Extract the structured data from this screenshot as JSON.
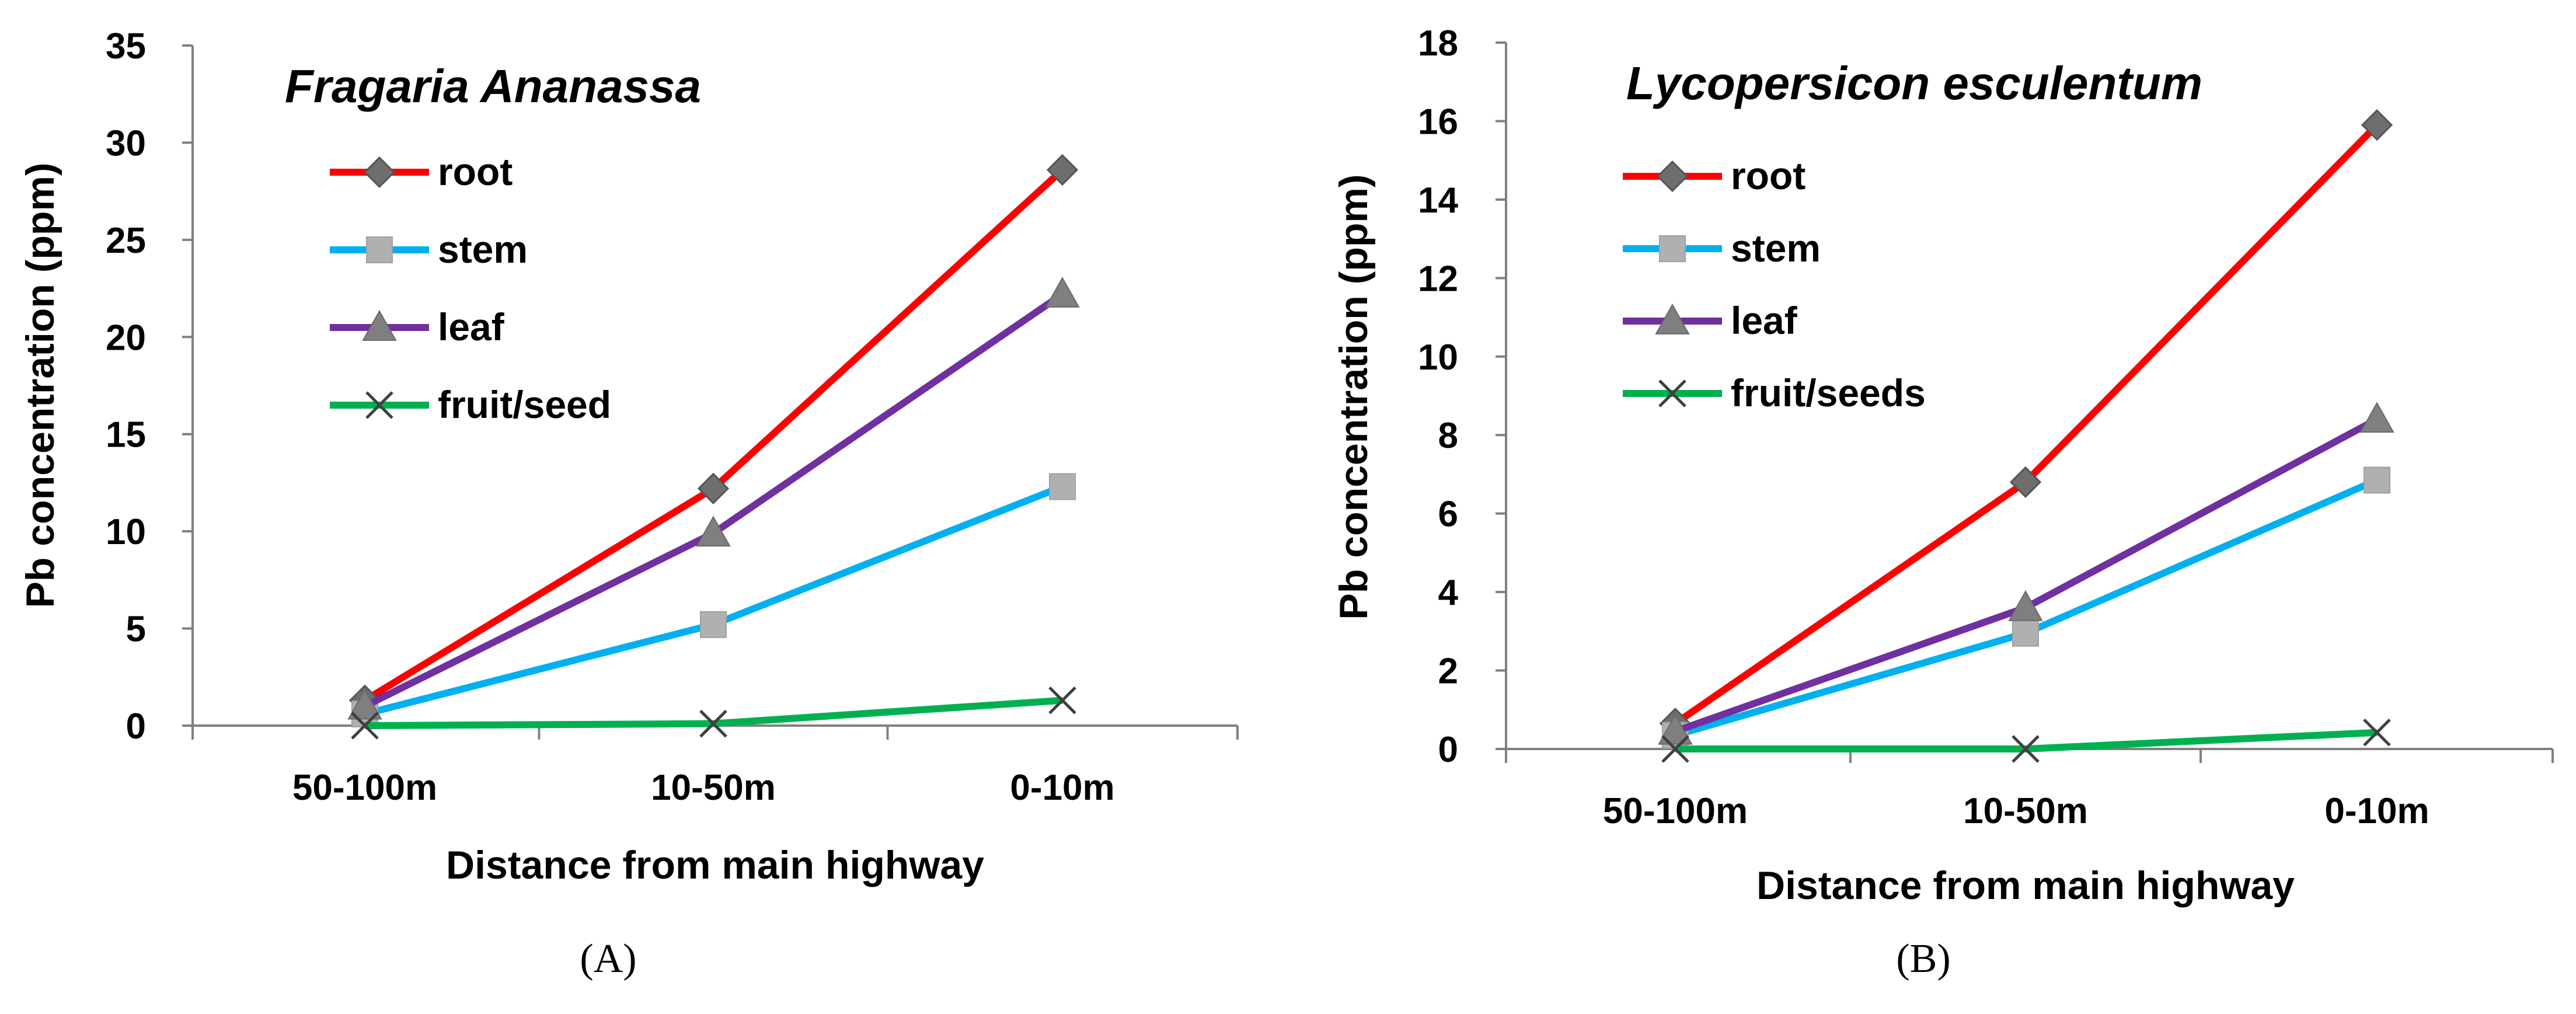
{
  "chart_data": [
    {
      "type": "line",
      "panel_label": "(A)",
      "title": "Fragaria Ananassa",
      "xlabel": "Distance from main highway",
      "ylabel": "Pb concentration (ppm)",
      "categories": [
        "50-100m",
        "10-50m",
        "0-10m"
      ],
      "ylim": [
        0,
        35
      ],
      "yticks": [
        0,
        5,
        10,
        15,
        20,
        25,
        30,
        35
      ],
      "legend_position": "top-left",
      "series": [
        {
          "name": "root",
          "values": [
            1.3,
            12.2,
            28.6
          ],
          "color": "#ff0000",
          "marker": "diamond"
        },
        {
          "name": "stem",
          "values": [
            0.6,
            5.2,
            12.3
          ],
          "color": "#00b0f0",
          "marker": "square"
        },
        {
          "name": "leaf",
          "values": [
            1.0,
            9.9,
            22.2
          ],
          "color": "#7030a0",
          "marker": "triangle"
        },
        {
          "name": "fruit/seed",
          "values": [
            0.0,
            0.1,
            1.3
          ],
          "color": "#00b050",
          "marker": "x"
        }
      ]
    },
    {
      "type": "line",
      "panel_label": "(B)",
      "title": "Lycopersicon esculentum",
      "xlabel": "Distance from main highway",
      "ylabel": "Pb concentration (ppm)",
      "categories": [
        "50-100m",
        "10-50m",
        "0-10m"
      ],
      "ylim": [
        0,
        18
      ],
      "yticks": [
        0,
        2,
        4,
        6,
        8,
        10,
        12,
        14,
        16,
        18
      ],
      "legend_position": "top-left",
      "series": [
        {
          "name": "root",
          "values": [
            0.65,
            6.8,
            15.9
          ],
          "color": "#ff0000",
          "marker": "diamond"
        },
        {
          "name": "stem",
          "values": [
            0.35,
            2.95,
            6.85
          ],
          "color": "#00b0f0",
          "marker": "square"
        },
        {
          "name": "leaf",
          "values": [
            0.45,
            3.6,
            8.4
          ],
          "color": "#7030a0",
          "marker": "triangle"
        },
        {
          "name": "fruit/seeds",
          "values": [
            0.0,
            0.0,
            0.42
          ],
          "color": "#00b050",
          "marker": "x"
        }
      ]
    }
  ]
}
